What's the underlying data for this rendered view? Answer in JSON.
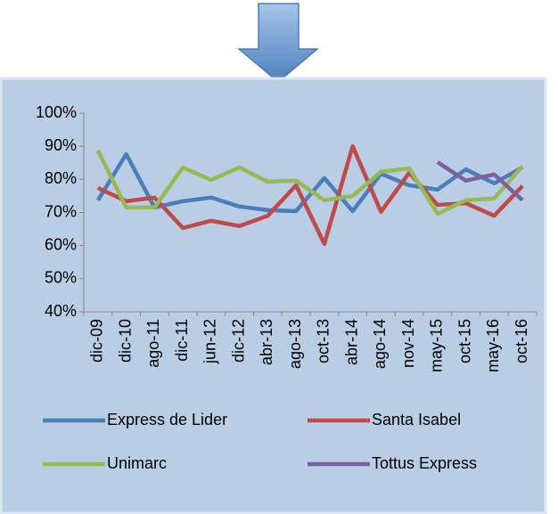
{
  "chart_data": {
    "type": "line",
    "categories": [
      "dic-09",
      "dic-10",
      "ago-11",
      "dic-11",
      "jun-12",
      "dic-12",
      "abr-13",
      "ago-13",
      "oct-13",
      "abr-14",
      "ago-14",
      "nov-14",
      "may-15",
      "oct-15",
      "may-16",
      "oct-16"
    ],
    "series": [
      {
        "name": "Express de Lider",
        "color": "#4a7ebb",
        "values": [
          73.7,
          87.6,
          71.5,
          73.4,
          74.5,
          71.8,
          70.7,
          70.4,
          80.4,
          70.4,
          81.7,
          78.2,
          76.9,
          83,
          78.8,
          83.6
        ]
      },
      {
        "name": "Santa Isabel",
        "color": "#be4b48",
        "values": [
          77.4,
          73.4,
          74.5,
          65.3,
          67.5,
          65.9,
          69,
          78.2,
          60.5,
          90,
          70.2,
          82,
          72.3,
          72.8,
          69,
          78
        ]
      },
      {
        "name": "Unimarc",
        "color": "#98b954",
        "values": [
          88.7,
          71.5,
          71.5,
          83.6,
          79.8,
          83.6,
          79.3,
          79.6,
          73.7,
          75,
          82.3,
          83.3,
          69.6,
          73.7,
          74.2,
          84
        ]
      },
      {
        "name": "Tottus Express",
        "color": "#7d60a0",
        "values": [
          null,
          null,
          null,
          null,
          null,
          null,
          null,
          null,
          null,
          null,
          null,
          null,
          85.2,
          79.6,
          81.5,
          73.7
        ]
      }
    ],
    "ylim": [
      40,
      100
    ],
    "yticks": [
      {
        "value": 40,
        "label": "40%"
      },
      {
        "value": 50,
        "label": "50%"
      },
      {
        "value": 60,
        "label": "60%"
      },
      {
        "value": 70,
        "label": "70%"
      },
      {
        "value": 80,
        "label": "80%"
      },
      {
        "value": 90,
        "label": "90%"
      },
      {
        "value": 100,
        "label": "100%"
      }
    ],
    "grid": false,
    "legend": "bottom"
  }
}
